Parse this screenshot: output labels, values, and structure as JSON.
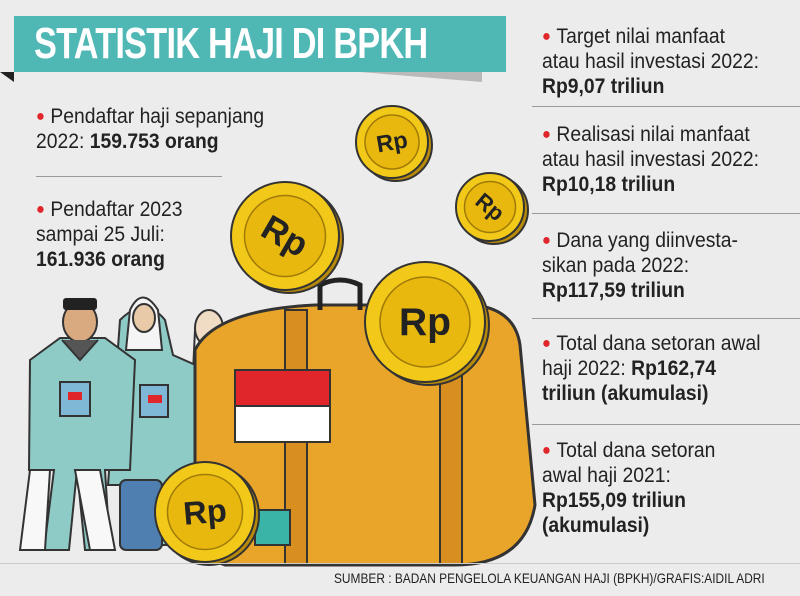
{
  "title": "STATISTIK HAJI DI BPKH",
  "left_stats": [
    {
      "label": "Pendaftar haji sepanjang",
      "label2": "2022:",
      "value": "159.753 orang"
    },
    {
      "label": "Pendaftar 2023",
      "label2": "sampai 25 Juli:",
      "value": "161.936 orang"
    }
  ],
  "right_stats": [
    {
      "line1": "Target nilai manfaat",
      "line2": "atau hasil investasi 2022:",
      "value": "Rp9,07 triliun"
    },
    {
      "line1": "Realisasi nilai manfaat",
      "line2": "atau hasil investasi 2022:",
      "value": "Rp10,18 triliun"
    },
    {
      "line1": "Dana yang diinvesta-",
      "line2": "sikan pada 2022:",
      "value": "Rp117,59 triliun"
    },
    {
      "line1": "Total dana setoran awal",
      "line2": "haji 2022:",
      "value": "Rp162,74",
      "value2": "triliun (akumulasi)"
    },
    {
      "line1": "Total dana setoran",
      "line2": "awal haji 2021:",
      "value": "Rp155,09 triliun",
      "value2": "(akumulasi)"
    }
  ],
  "coin_label": "Rp",
  "source": "SUMBER : BADAN PENGELOLA KEUANGAN HAJI (BPKH)/GRAFIS:AIDIL ADRI",
  "colors": {
    "title_bar": "#4fb7b4",
    "bullet": "#e0262b",
    "coin": "#f2c919",
    "bag": "#e9a52a",
    "background": "#ececec"
  }
}
